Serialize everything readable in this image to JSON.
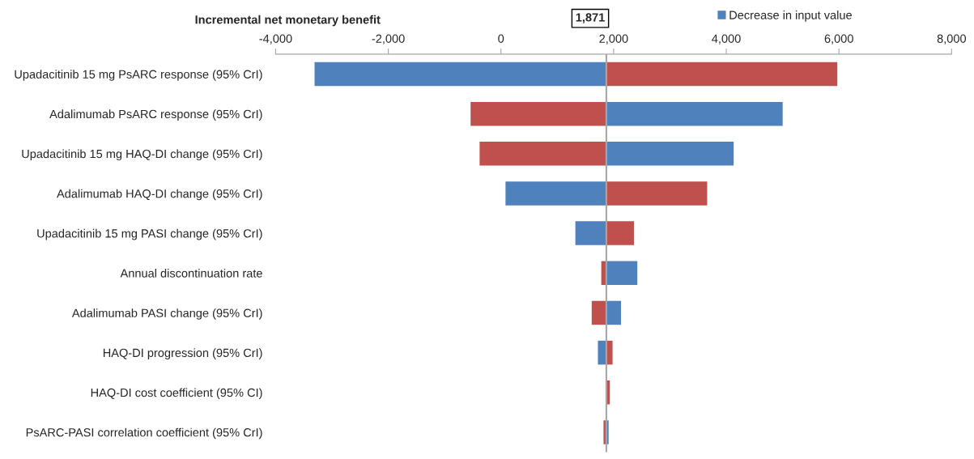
{
  "chart_data": {
    "type": "bar",
    "orientation": "horizontal",
    "title": "Incremental net monetary benefit",
    "categories": [
      "Upadacitinib 15 mg PsARC response (95% CrI)",
      "Adalimumab PsARC response (95% CrI)",
      "Upadacitinib 15 mg HAQ-DI change (95% CrI)",
      "Adalimumab HAQ-DI change (95% CrI)",
      "Upadacitinib 15 mg PASI change (95% CrI)",
      "Annual discontinuation rate",
      "Adalimumab PASI change (95% CrI)",
      "HAQ-DI progression (95% CrI)",
      "HAQ-DI cost coefficient (95% CI)",
      "PsARC-PASI correlation coefficient (95% CrI)"
    ],
    "series": [
      {
        "name": "Decrease in input value",
        "color": "#4f81bd",
        "base": [
          1871,
          1871,
          1871,
          1871,
          1871,
          1871,
          1871,
          1871,
          null,
          1871
        ],
        "values": [
          -5180,
          3130,
          2260,
          -1790,
          -550,
          550,
          260,
          -150,
          null,
          40
        ]
      },
      {
        "color": "#c0504d",
        "base": [
          1871,
          1871,
          1871,
          1871,
          1871,
          1871,
          1871,
          1871,
          1871,
          1871
        ],
        "values": [
          4100,
          -2410,
          -2250,
          1790,
          490,
          -90,
          -260,
          110,
          60,
          -50
        ]
      }
    ],
    "xlim": [
      -4000,
      8000
    ],
    "xticks": [
      {
        "value": -4000,
        "label": "-4,000"
      },
      {
        "value": -2000,
        "label": "-2,000"
      },
      0,
      {
        "value": 2000,
        "label": "2,000"
      },
      {
        "value": 4000,
        "label": "4,000"
      },
      {
        "value": 6000,
        "label": "6,000"
      },
      {
        "value": 8000,
        "label": "8,000"
      }
    ],
    "ref_lines": [
      {
        "axis": "x",
        "value": 1871,
        "color": "#a6a6a6"
      }
    ],
    "annotations": [
      "1,871"
    ],
    "legend": "top right",
    "grid": false
  }
}
